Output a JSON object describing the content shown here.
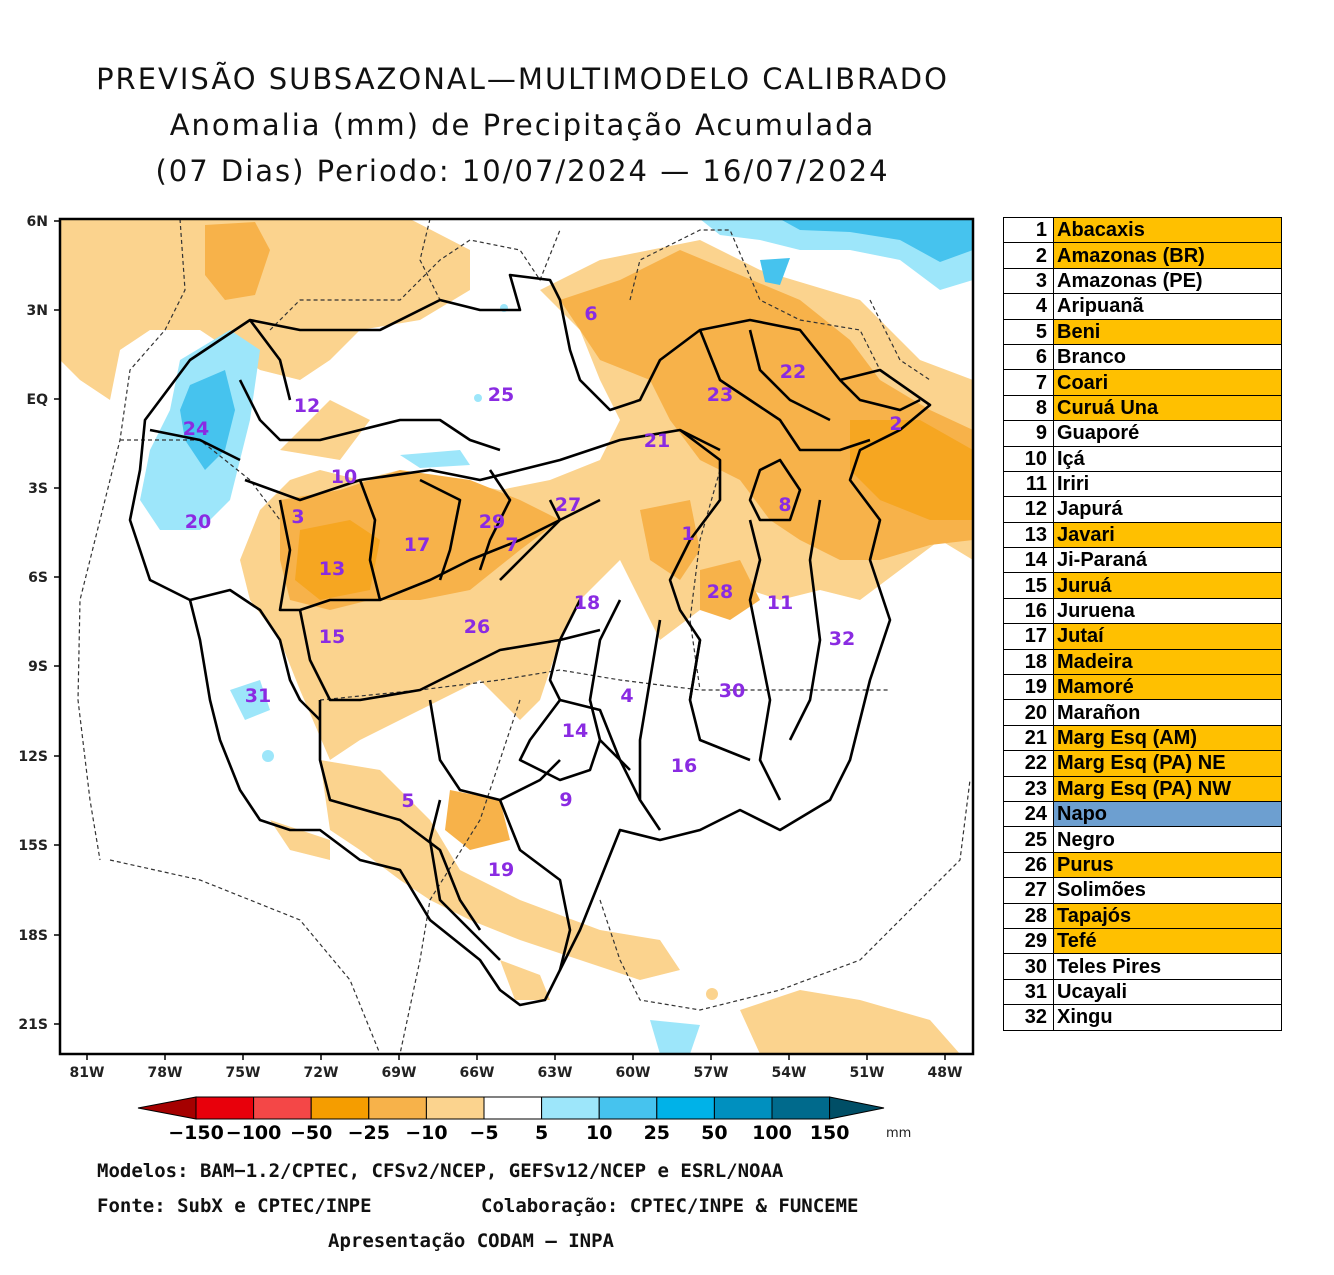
{
  "title": {
    "line1": "PREVISÃO SUBSAZONAL—MULTIMODELO CALIBRADO",
    "line2": "Anomalia (mm) de Precipitação Acumulada",
    "line3": "(07 Dias) Periodo: 10/07/2024 — 16/07/2024"
  },
  "axes": {
    "lat_labels": [
      "6N",
      "3N",
      "EQ",
      "3S",
      "6S",
      "9S",
      "12S",
      "15S",
      "18S",
      "21S"
    ],
    "lon_labels": [
      "81W",
      "78W",
      "75W",
      "72W",
      "69W",
      "66W",
      "63W",
      "60W",
      "57W",
      "54W",
      "51W",
      "48W"
    ]
  },
  "basin_labels": [
    "1",
    "2",
    "3",
    "4",
    "5",
    "6",
    "7",
    "8",
    "9",
    "10",
    "11",
    "12",
    "13",
    "14",
    "15",
    "16",
    "17",
    "18",
    "19",
    "20",
    "21",
    "22",
    "23",
    "24",
    "25",
    "26",
    "27",
    "28",
    "29",
    "30",
    "31",
    "32"
  ],
  "legend": [
    {
      "num": "1",
      "name": "Abacaxis",
      "color": "#ffc000"
    },
    {
      "num": "2",
      "name": "Amazonas (BR)",
      "color": "#ffc000"
    },
    {
      "num": "3",
      "name": "Amazonas (PE)",
      "color": "#ffffff"
    },
    {
      "num": "4",
      "name": "Aripuanã",
      "color": "#ffffff"
    },
    {
      "num": "5",
      "name": "Beni",
      "color": "#ffc000"
    },
    {
      "num": "6",
      "name": "Branco",
      "color": "#ffffff"
    },
    {
      "num": "7",
      "name": "Coari",
      "color": "#ffc000"
    },
    {
      "num": "8",
      "name": "Curuá Una",
      "color": "#ffc000"
    },
    {
      "num": "9",
      "name": "Guaporé",
      "color": "#ffffff"
    },
    {
      "num": "10",
      "name": "Içá",
      "color": "#ffffff"
    },
    {
      "num": "11",
      "name": "Iriri",
      "color": "#ffffff"
    },
    {
      "num": "12",
      "name": "Japurá",
      "color": "#ffffff"
    },
    {
      "num": "13",
      "name": "Javari",
      "color": "#ffc000"
    },
    {
      "num": "14",
      "name": "Ji-Paraná",
      "color": "#ffffff"
    },
    {
      "num": "15",
      "name": "Juruá",
      "color": "#ffc000"
    },
    {
      "num": "16",
      "name": "Juruena",
      "color": "#ffffff"
    },
    {
      "num": "17",
      "name": "Jutaí",
      "color": "#ffc000"
    },
    {
      "num": "18",
      "name": "Madeira",
      "color": "#ffc000"
    },
    {
      "num": "19",
      "name": "Mamoré",
      "color": "#ffc000"
    },
    {
      "num": "20",
      "name": "Marañon",
      "color": "#ffffff"
    },
    {
      "num": "21",
      "name": "Marg Esq (AM)",
      "color": "#ffc000"
    },
    {
      "num": "22",
      "name": "Marg Esq (PA) NE",
      "color": "#ffc000"
    },
    {
      "num": "23",
      "name": "Marg Esq (PA) NW",
      "color": "#ffc000"
    },
    {
      "num": "24",
      "name": "Napo",
      "color": "#6d9fd0"
    },
    {
      "num": "25",
      "name": "Negro",
      "color": "#ffffff"
    },
    {
      "num": "26",
      "name": "Purus",
      "color": "#ffc000"
    },
    {
      "num": "27",
      "name": "Solimões",
      "color": "#ffffff"
    },
    {
      "num": "28",
      "name": "Tapajós",
      "color": "#ffc000"
    },
    {
      "num": "29",
      "name": "Tefé",
      "color": "#ffc000"
    },
    {
      "num": "30",
      "name": "Teles Pires",
      "color": "#ffffff"
    },
    {
      "num": "31",
      "name": "Ucayali",
      "color": "#ffffff"
    },
    {
      "num": "32",
      "name": "Xingu",
      "color": "#ffffff"
    }
  ],
  "colorbar": {
    "labels": [
      "−150",
      "−100",
      "−50",
      "−25",
      "−10",
      "−5",
      "5",
      "10",
      "25",
      "50",
      "100",
      "150"
    ],
    "unit": "mm",
    "colors": [
      "#a50000",
      "#e8000b",
      "#f44747",
      "#f59d00",
      "#f7b24a",
      "#fbd38e",
      "#ffffff",
      "#9de6fa",
      "#46c3ee",
      "#00b2e8",
      "#0090bf",
      "#006a8c",
      "#004e66"
    ]
  },
  "footer": {
    "models": "Modelos: BAM−1.2/CPTEC, CFSv2/NCEP, GEFSv12/NCEP e ESRL/NOAA",
    "source": "Fonte: SubX e CPTEC/INPE",
    "collab": "Colaboração: CPTEC/INPE & FUNCEME",
    "presentation": "Apresentação CODAM — INPA"
  }
}
